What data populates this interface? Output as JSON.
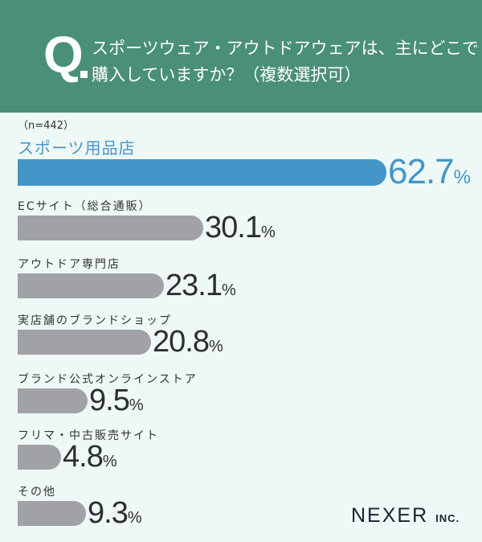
{
  "header": {
    "q_mark": "Q",
    "question": "スポーツウェア・アウトドアウェアは、主にどこで\n購入していますか？（複数選択可）"
  },
  "sample_note": "（n=442）",
  "logo": {
    "main": "NEXER",
    "suffix": "INC."
  },
  "colors": {
    "header": "#4a8f78",
    "highlight": "#4596c8",
    "bar": "#a0a2a5",
    "background": "#eef8f6"
  },
  "chart_data": {
    "type": "bar",
    "orientation": "horizontal",
    "unit": "%",
    "categories": [
      "スポーツ用品店",
      "ECサイト（総合通販）",
      "アウトドア専門店",
      "実店舗のブランドショップ",
      "ブランド公式オンラインストア",
      "フリマ・中古販売サイト",
      "その他"
    ],
    "values": [
      62.7,
      30.1,
      23.1,
      20.8,
      9.5,
      4.8,
      9.3
    ],
    "highlight_index": 0
  }
}
